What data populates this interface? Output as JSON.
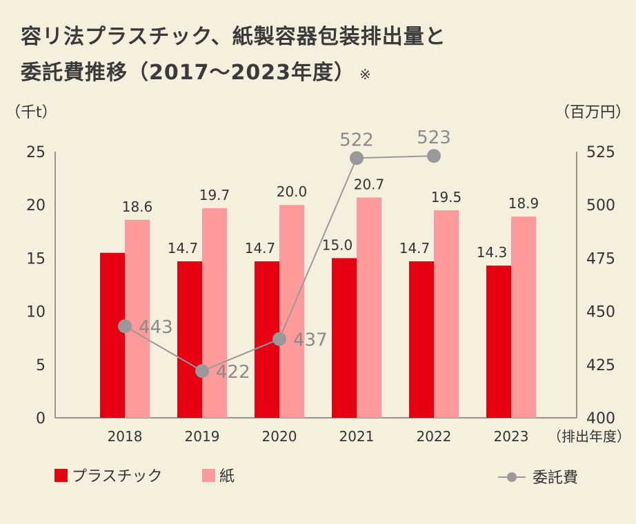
{
  "title": {
    "line1": "容リ法プラスチック、紙製容器包装排出量と",
    "line2": "委託費推移（2017～2023年度）",
    "note": "※"
  },
  "chart_data": {
    "type": "bar",
    "categories": [
      "2018",
      "2019",
      "2020",
      "2021",
      "2022",
      "2023"
    ],
    "series": [
      {
        "name": "プラスチック",
        "axis": "left",
        "color": "#e60012",
        "values": [
          15.5,
          14.7,
          14.7,
          15.0,
          14.7,
          14.3
        ],
        "labels": [
          "",
          "14.7",
          "14.7",
          "15.0",
          "14.7",
          "14.3"
        ]
      },
      {
        "name": "紙",
        "axis": "left",
        "color": "#ff9a9a",
        "values": [
          18.6,
          19.7,
          20.0,
          20.7,
          19.5,
          18.9
        ],
        "labels": [
          "18.6",
          "19.7",
          "20.0",
          "20.7",
          "19.5",
          "18.9"
        ]
      },
      {
        "name": "委託費",
        "axis": "right",
        "type": "line",
        "color": "#999999",
        "values": [
          443,
          422,
          437,
          522,
          523,
          null
        ],
        "labels": [
          "443",
          "422",
          "437",
          "522",
          "523",
          ""
        ]
      }
    ],
    "yleft": {
      "unit": "（千t）",
      "ylim": [
        0,
        25
      ],
      "ticks": [
        "0",
        "5",
        "10",
        "15",
        "20",
        "25"
      ]
    },
    "yright": {
      "unit": "（百万円）",
      "ylim": [
        400,
        525
      ],
      "ticks": [
        "400",
        "425",
        "450",
        "475",
        "500",
        "525"
      ]
    },
    "xlabel": "（排出年度）",
    "legend_position": "bottom"
  }
}
